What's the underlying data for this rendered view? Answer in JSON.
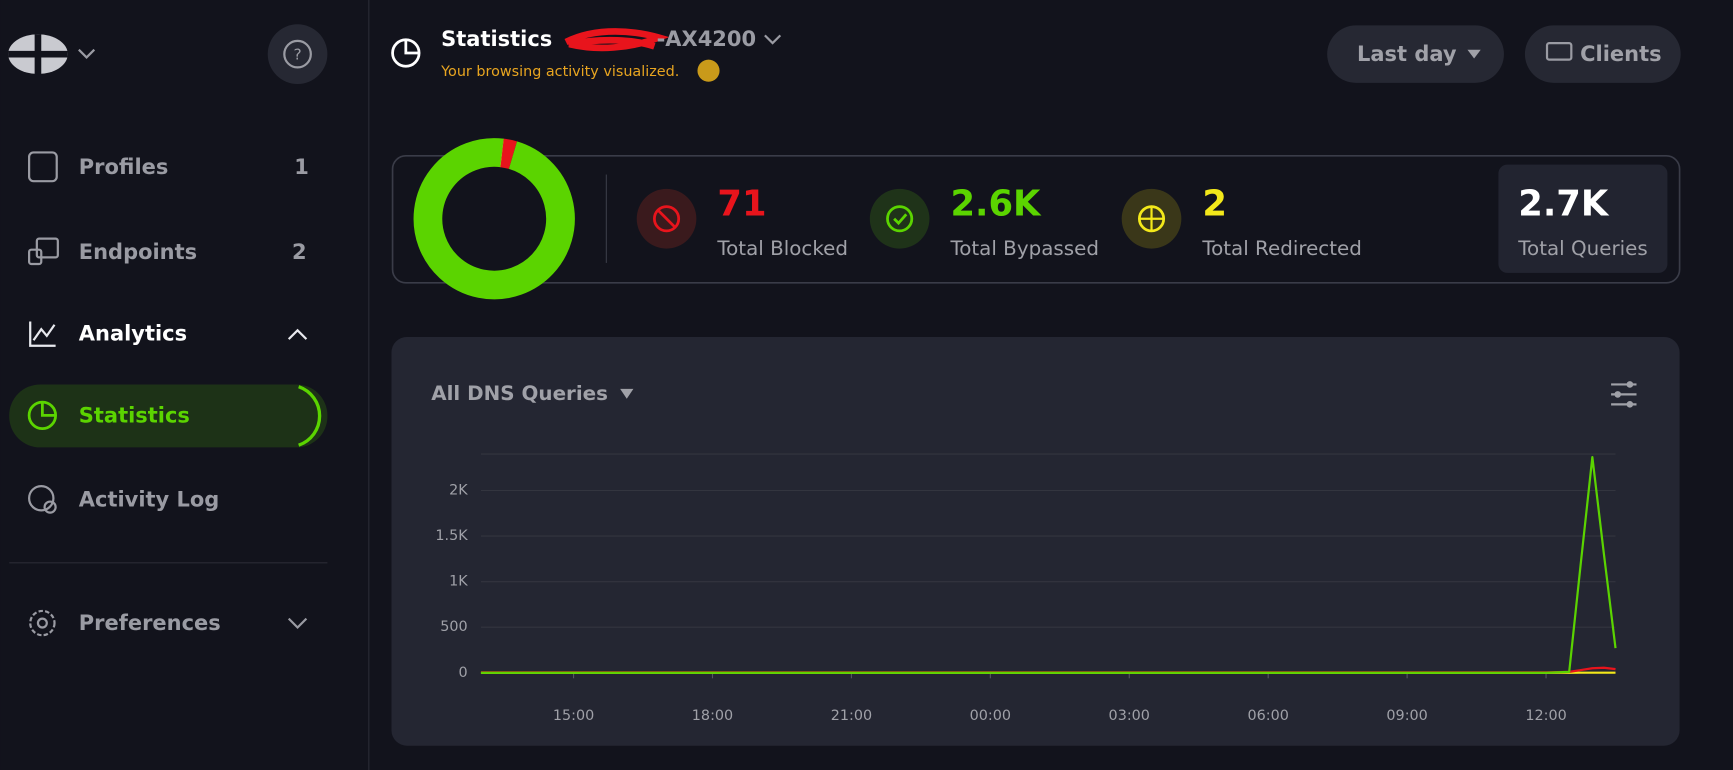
{
  "sidebar": {
    "items": [
      {
        "label": "Profiles",
        "count": 1
      },
      {
        "label": "Endpoints",
        "count": 2
      },
      {
        "label": "Analytics"
      },
      {
        "label": "Statistics"
      },
      {
        "label": "Activity Log"
      },
      {
        "label": "Preferences"
      }
    ]
  },
  "header": {
    "title": "Statistics",
    "device": "-AX4200",
    "subtitle": "Your browsing activity visualized.",
    "range": "Last day",
    "clients": "Clients"
  },
  "stats": [
    {
      "label": "Total Blocked",
      "value": 71,
      "color": "#e8141c"
    },
    {
      "label": "Total Bypassed",
      "value": 2600,
      "value_label": "2.6K",
      "color": "#5bd400"
    },
    {
      "label": "Total Redirected",
      "value": 2,
      "color": "#f3e81a"
    },
    {
      "label": "Total Queries",
      "value": 2700,
      "value_label": "2.7K"
    }
  ],
  "chart_data": {
    "type": "line",
    "title": "All DNS Queries",
    "x": [
      13,
      15,
      18,
      21,
      24,
      27,
      30,
      33,
      36,
      36.5,
      36.75,
      37,
      37.25,
      37.5
    ],
    "series": [
      {
        "name": "Bypassed",
        "color": "#5bd400",
        "values": [
          0,
          0,
          0,
          0,
          0,
          0,
          0,
          0,
          0,
          10,
          1200,
          2366,
          1300,
          270
        ]
      },
      {
        "name": "Blocked",
        "color": "#e8141c",
        "values": [
          5,
          5,
          5,
          5,
          5,
          5,
          5,
          5,
          5,
          10,
          30,
          50,
          55,
          40
        ]
      },
      {
        "name": "Redirected",
        "color": "#f3e81a",
        "values": [
          0,
          0,
          0,
          0,
          0,
          0,
          0,
          0,
          0,
          0,
          1,
          1,
          1,
          1
        ]
      }
    ],
    "xlim": [
      13,
      37.5
    ],
    "xticks": [
      {
        "value": 15,
        "label": "15:00"
      },
      {
        "value": 18,
        "label": "18:00"
      },
      {
        "value": 21,
        "label": "21:00"
      },
      {
        "value": 24,
        "label": "00:00"
      },
      {
        "value": 27,
        "label": "03:00"
      },
      {
        "value": 30,
        "label": "06:00"
      },
      {
        "value": 33,
        "label": "09:00"
      },
      {
        "value": 36,
        "label": "12:00"
      }
    ],
    "ylim": [
      0,
      2400
    ],
    "yticks": [
      0,
      500,
      {
        "value": 1000,
        "label": "1K"
      },
      {
        "value": 1500,
        "label": "1.5K"
      },
      {
        "value": 2000,
        "label": "2K"
      }
    ],
    "grid": true
  }
}
